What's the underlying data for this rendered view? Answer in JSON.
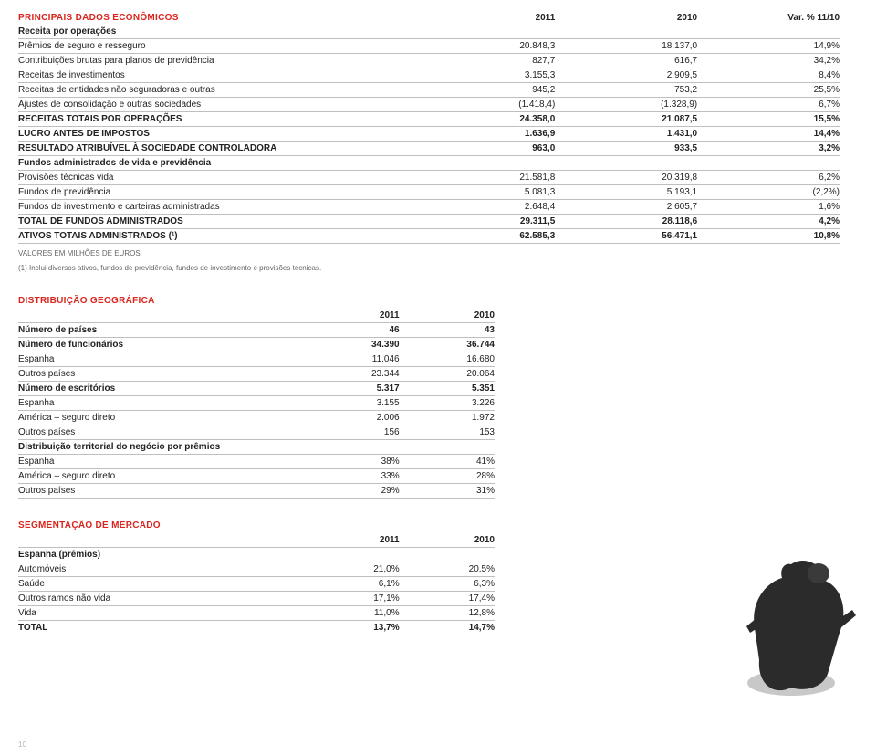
{
  "page_number": "10",
  "t1": {
    "title": "PRINCIPAIS DADOS ECONÔMICOS",
    "headers": [
      "2011",
      "2010",
      "Var. % 11/10"
    ],
    "rows": [
      {
        "label": "Receita por operações",
        "bold": true,
        "indent": 0,
        "vals": [
          "",
          "",
          ""
        ]
      },
      {
        "label": "Prêmios de seguro e resseguro",
        "bold": false,
        "indent": 1,
        "vals": [
          "20.848,3",
          "18.137,0",
          "14,9%"
        ]
      },
      {
        "label": "Contribuições brutas para planos de previdência",
        "bold": false,
        "indent": 1,
        "vals": [
          "827,7",
          "616,7",
          "34,2%"
        ]
      },
      {
        "label": "Receitas de investimentos",
        "bold": false,
        "indent": 1,
        "vals": [
          "3.155,3",
          "2.909,5",
          "8,4%"
        ]
      },
      {
        "label": "Receitas de entidades não seguradoras e outras",
        "bold": false,
        "indent": 1,
        "vals": [
          "945,2",
          "753,2",
          "25,5%"
        ]
      },
      {
        "label": "Ajustes de consolidação e outras sociedades",
        "bold": false,
        "indent": 1,
        "vals": [
          "(1.418,4)",
          "(1.328,9)",
          "6,7%"
        ]
      },
      {
        "label": "RECEITAS TOTAIS POR OPERAÇÕES",
        "bold": true,
        "indent": 0,
        "vals": [
          "24.358,0",
          "21.087,5",
          "15,5%"
        ]
      },
      {
        "label": "LUCRO ANTES DE IMPOSTOS",
        "bold": true,
        "indent": 0,
        "vals": [
          "1.636,9",
          "1.431,0",
          "14,4%"
        ]
      },
      {
        "label": "RESULTADO ATRIBUÍVEL À SOCIEDADE CONTROLADORA",
        "bold": true,
        "indent": 0,
        "vals": [
          "963,0",
          "933,5",
          "3,2%"
        ]
      },
      {
        "label": "Fundos administrados de vida e previdência",
        "bold": true,
        "indent": 0,
        "vals": [
          "",
          "",
          ""
        ]
      },
      {
        "label": "Provisões técnicas vida",
        "bold": false,
        "indent": 1,
        "vals": [
          "21.581,8",
          "20.319,8",
          "6,2%"
        ]
      },
      {
        "label": "Fundos de previdência",
        "bold": false,
        "indent": 1,
        "vals": [
          "5.081,3",
          "5.193,1",
          "(2,2%)"
        ]
      },
      {
        "label": "Fundos de investimento e carteiras administradas",
        "bold": false,
        "indent": 1,
        "vals": [
          "2.648,4",
          "2.605,7",
          "1,6%"
        ]
      },
      {
        "label": "TOTAL DE FUNDOS ADMINISTRADOS",
        "bold": true,
        "indent": 0,
        "vals": [
          "29.311,5",
          "28.118,6",
          "4,2%"
        ]
      },
      {
        "label": "ATIVOS TOTAIS ADMINISTRADOS (¹)",
        "bold": true,
        "indent": 0,
        "vals": [
          "62.585,3",
          "56.471,1",
          "10,8%"
        ]
      }
    ],
    "footnote1": "VALORES EM MILHÕES DE EUROS.",
    "footnote2": "(1) Inclui diversos ativos, fundos de previdência, fundos de investimento e provisões técnicas."
  },
  "t2": {
    "title": "DISTRIBUIÇÃO GEOGRÁFICA",
    "headers": [
      "2011",
      "2010"
    ],
    "rows": [
      {
        "label": "Número de países",
        "bold": true,
        "indent": 0,
        "vals": [
          "46",
          "43"
        ]
      },
      {
        "label": "Número de funcionários",
        "bold": true,
        "indent": 0,
        "vals": [
          "34.390",
          "36.744"
        ]
      },
      {
        "label": "Espanha",
        "bold": false,
        "indent": 1,
        "vals": [
          "11.046",
          "16.680"
        ]
      },
      {
        "label": "Outros países",
        "bold": false,
        "indent": 1,
        "vals": [
          "23.344",
          "20.064"
        ]
      },
      {
        "label": "Número de escritórios",
        "bold": true,
        "indent": 0,
        "vals": [
          "5.317",
          "5.351"
        ]
      },
      {
        "label": "Espanha",
        "bold": false,
        "indent": 1,
        "vals": [
          "3.155",
          "3.226"
        ]
      },
      {
        "label": "América – seguro direto",
        "bold": false,
        "indent": 1,
        "vals": [
          "2.006",
          "1.972"
        ]
      },
      {
        "label": "Outros países",
        "bold": false,
        "indent": 1,
        "vals": [
          "156",
          "153"
        ]
      },
      {
        "label": "Distribuição territorial do negócio por prêmios",
        "bold": true,
        "indent": 0,
        "vals": [
          "",
          ""
        ]
      },
      {
        "label": "Espanha",
        "bold": false,
        "indent": 1,
        "vals": [
          "38%",
          "41%"
        ]
      },
      {
        "label": "América – seguro direto",
        "bold": false,
        "indent": 1,
        "vals": [
          "33%",
          "28%"
        ]
      },
      {
        "label": "Outros países",
        "bold": false,
        "indent": 1,
        "vals": [
          "29%",
          "31%"
        ]
      }
    ]
  },
  "t3": {
    "title": "SEGMENTAÇÃO DE MERCADO",
    "headers": [
      "2011",
      "2010"
    ],
    "rows": [
      {
        "label": "Espanha (prêmios)",
        "bold": true,
        "indent": 0,
        "vals": [
          "",
          ""
        ]
      },
      {
        "label": "Automóveis",
        "bold": false,
        "indent": 1,
        "vals": [
          "21,0%",
          "20,5%"
        ]
      },
      {
        "label": "Saúde",
        "bold": false,
        "indent": 1,
        "vals": [
          "6,1%",
          "6,3%"
        ]
      },
      {
        "label": "Outros ramos não vida",
        "bold": false,
        "indent": 1,
        "vals": [
          "17,1%",
          "17,4%"
        ]
      },
      {
        "label": "Vida",
        "bold": false,
        "indent": 1,
        "vals": [
          "11,0%",
          "12,8%"
        ]
      },
      {
        "label": "TOTAL",
        "bold": true,
        "indent": 0,
        "vals": [
          "13,7%",
          "14,7%"
        ]
      }
    ]
  },
  "colors": {
    "title": "#d9251d",
    "text": "#222222",
    "border": "#bfbfbf",
    "footnote": "#666666",
    "page_num": "#b5b5b5",
    "figure_dark": "#2b2b2b",
    "figure_shadow": "#9a9a9a"
  }
}
